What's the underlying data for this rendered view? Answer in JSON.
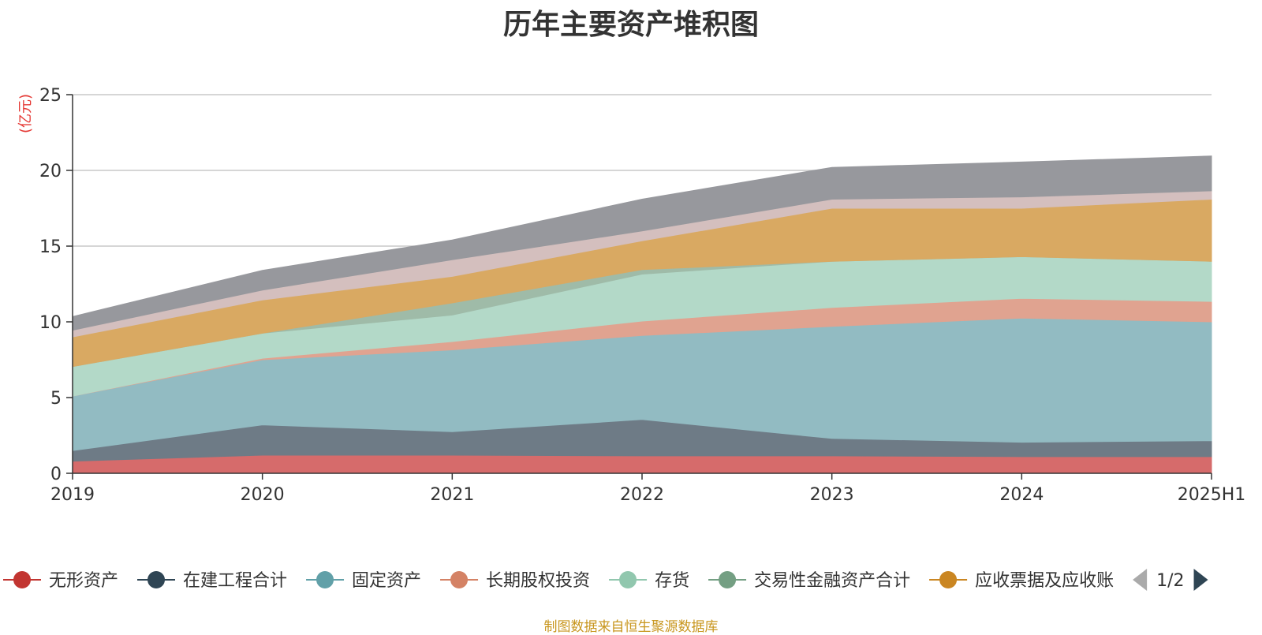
{
  "chart_data": {
    "type": "area",
    "stacked": true,
    "title": "历年主要资产堆积图",
    "ylabel": "(亿元)",
    "ylabel_color": "#e53935",
    "ylim": [
      0,
      25
    ],
    "yticks": [
      0,
      5,
      10,
      15,
      20,
      25
    ],
    "grid": true,
    "legend_position": "bottom",
    "categories": [
      "2019",
      "2020",
      "2021",
      "2022",
      "2023",
      "2024",
      "2025H1"
    ],
    "series": [
      {
        "name": "无形资产",
        "color": "#d66b6b",
        "legend_color": "#c23531",
        "values": [
          0.8,
          1.2,
          1.2,
          1.15,
          1.15,
          1.1,
          1.1
        ]
      },
      {
        "name": "在建工程合计",
        "color": "#6e7b86",
        "legend_color": "#2f4554",
        "values": [
          0.7,
          2.0,
          1.55,
          2.4,
          1.15,
          0.95,
          1.05
        ]
      },
      {
        "name": "固定资产",
        "color": "#92bbc2",
        "legend_color": "#61a0a8",
        "values": [
          3.6,
          4.3,
          5.4,
          5.55,
          7.4,
          8.2,
          7.85
        ]
      },
      {
        "name": "长期股权投资",
        "color": "#e0a390",
        "legend_color": "#d48265",
        "values": [
          0.0,
          0.1,
          0.55,
          0.95,
          1.25,
          1.3,
          1.35
        ]
      },
      {
        "name": "存货",
        "color": "#b3d9c8",
        "legend_color": "#91c7ae",
        "values": [
          1.95,
          1.65,
          1.75,
          3.1,
          3.05,
          2.75,
          2.65
        ]
      },
      {
        "name": "交易性金融资产合计",
        "color": "#9fbba8",
        "legend_color": "#749f83",
        "values": [
          0.0,
          0.0,
          0.8,
          0.3,
          0.0,
          0.0,
          0.0
        ]
      },
      {
        "name": "应收票据及应收账",
        "color": "#d9a962",
        "legend_color": "#ca8622",
        "values": [
          1.95,
          2.2,
          1.75,
          1.9,
          3.5,
          3.2,
          4.1
        ]
      },
      {
        "name": "",
        "color": "#d4bfbe",
        "values": [
          0.45,
          0.65,
          1.1,
          0.65,
          0.6,
          0.75,
          0.55
        ]
      },
      {
        "name": "",
        "color": "#97989d",
        "values": [
          0.9,
          1.3,
          1.3,
          2.1,
          2.1,
          2.3,
          2.3
        ]
      }
    ],
    "legend_page": "1/2",
    "source_note": "制图数据来自恒生聚源数据库"
  }
}
